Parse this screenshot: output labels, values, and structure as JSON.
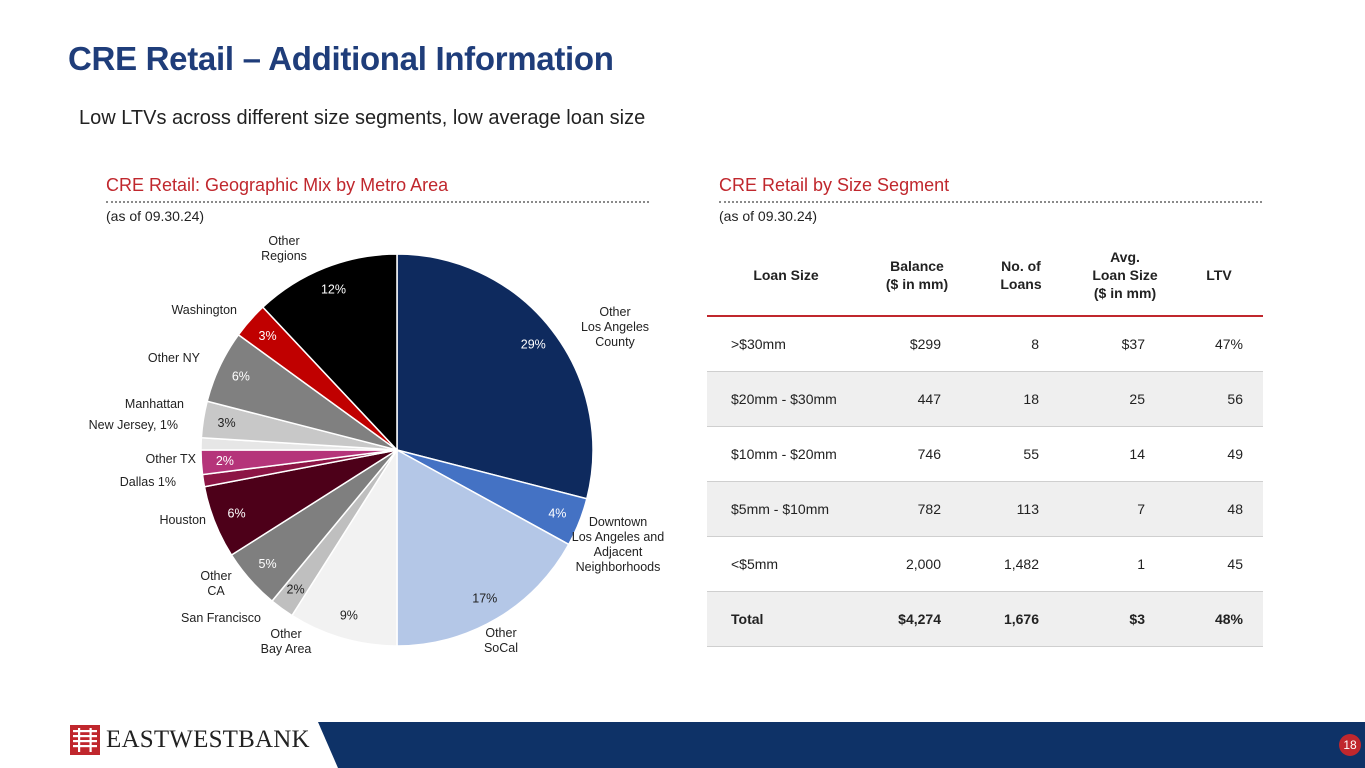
{
  "title": "CRE Retail – Additional Information",
  "subtitle": "Low LTVs across different size segments, low average loan size",
  "left_section": {
    "heading": "CRE Retail: Geographic Mix by Metro Area",
    "as_of": "(as of 09.30.24)"
  },
  "right_section": {
    "heading": "CRE Retail by Size Segment",
    "as_of": "(as of 09.30.24)"
  },
  "chart_data": {
    "type": "pie",
    "title": "CRE Retail: Geographic Mix by Metro Area",
    "slices": [
      {
        "label": "Other Los Angeles County",
        "value": 29,
        "pct_label": "29%",
        "color": "#0e2a5e",
        "pct_color": "#ffffff"
      },
      {
        "label": "Downtown Los Angeles and Adjacent Neighborhoods",
        "value": 4,
        "pct_label": "4%",
        "color": "#4472c4",
        "pct_color": "#ffffff"
      },
      {
        "label": "Other SoCal",
        "value": 17,
        "pct_label": "17%",
        "color": "#b4c7e7",
        "pct_color": "#222222"
      },
      {
        "label": "Other Bay Area",
        "value": 9,
        "pct_label": "9%",
        "color": "#f2f2f2",
        "pct_color": "#222222"
      },
      {
        "label": "San Francisco",
        "value": 2,
        "pct_label": "2%",
        "color": "#bfbfbf",
        "pct_color": "#222222"
      },
      {
        "label": "Other CA",
        "value": 5,
        "pct_label": "5%",
        "color": "#7f7f7f",
        "pct_color": "#ffffff"
      },
      {
        "label": "Houston",
        "value": 6,
        "pct_label": "6%",
        "color": "#4d0019",
        "pct_color": "#ffffff"
      },
      {
        "label": "Dallas",
        "value": 1,
        "pct_label": "1%",
        "color": "#8c1545",
        "pct_color": "#222222"
      },
      {
        "label": "Other TX",
        "value": 2,
        "pct_label": "2%",
        "color": "#b5347a",
        "pct_color": "#ffffff"
      },
      {
        "label": "New Jersey",
        "value": 1,
        "pct_label": "1%",
        "color": "#e6e6e6",
        "pct_color": "#222222"
      },
      {
        "label": "Manhattan",
        "value": 3,
        "pct_label": "3%",
        "color": "#c8c8c8",
        "pct_color": "#222222"
      },
      {
        "label": "Other NY",
        "value": 6,
        "pct_label": "6%",
        "color": "#808080",
        "pct_color": "#ffffff"
      },
      {
        "label": "Washington",
        "value": 3,
        "pct_label": "3%",
        "color": "#c00000",
        "pct_color": "#ffffff"
      },
      {
        "label": "Other Regions",
        "value": 12,
        "pct_label": "12%",
        "color": "#000000",
        "pct_color": "#ffffff"
      }
    ]
  },
  "table": {
    "headers": [
      "Loan Size",
      "Balance\n($ in mm)",
      "No. of\nLoans",
      "Avg.\nLoan Size\n($ in mm)",
      "LTV"
    ],
    "rows": [
      [
        ">$30mm",
        "$299",
        "8",
        "$37",
        "47%"
      ],
      [
        "$20mm - $30mm",
        "447",
        "18",
        "25",
        "56"
      ],
      [
        "$10mm - $20mm",
        "746",
        "55",
        "14",
        "49"
      ],
      [
        "$5mm - $10mm",
        "782",
        "113",
        "7",
        "48"
      ],
      [
        "<$5mm",
        "2,000",
        "1,482",
        "1",
        "45"
      ],
      [
        "Total",
        "$4,274",
        "1,676",
        "$3",
        "48%"
      ]
    ]
  },
  "footer": {
    "logo_text": "EASTWESTBANK",
    "page_number": "18"
  },
  "colors": {
    "title_blue": "#1f3d7a",
    "accent_red": "#c0272d",
    "footer_blue": "#0e3267"
  }
}
